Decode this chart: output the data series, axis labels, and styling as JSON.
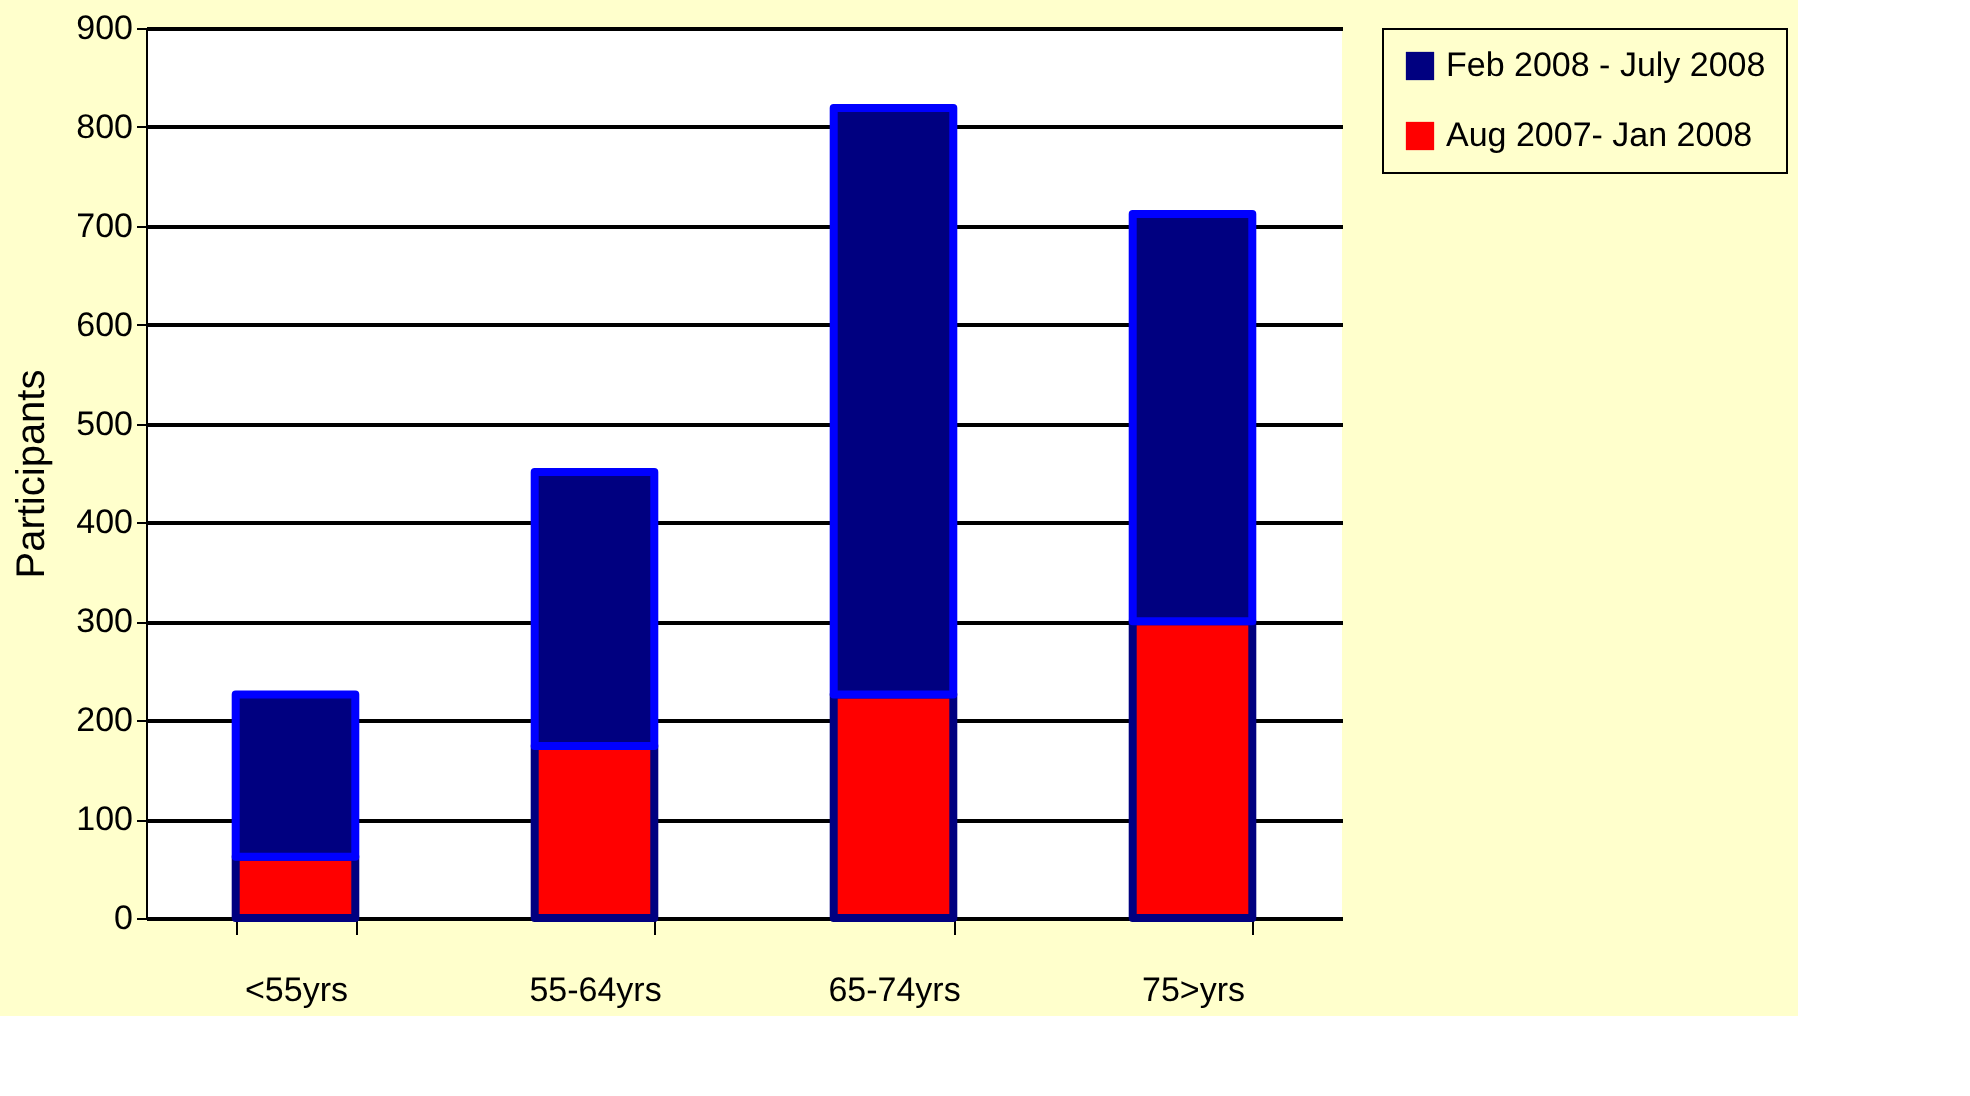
{
  "chart_data": {
    "type": "bar",
    "stacked": true,
    "ylabel": "Participants",
    "categories": [
      "<55yrs",
      "55-64yrs",
      "65-74yrs",
      "75>yrs"
    ],
    "series": [
      {
        "name": "Aug 2007- Jan 2008",
        "color": "#ff0000",
        "values": [
          62,
          174,
          226,
          300
        ]
      },
      {
        "name": "Feb 2008 - July 2008",
        "color": "#000080",
        "values": [
          164,
          277,
          593,
          412
        ]
      }
    ],
    "ylim": [
      0,
      900
    ],
    "yticks": [
      0,
      100,
      200,
      300,
      400,
      500,
      600,
      700,
      800,
      900
    ],
    "grid": "y",
    "legend": "right"
  }
}
